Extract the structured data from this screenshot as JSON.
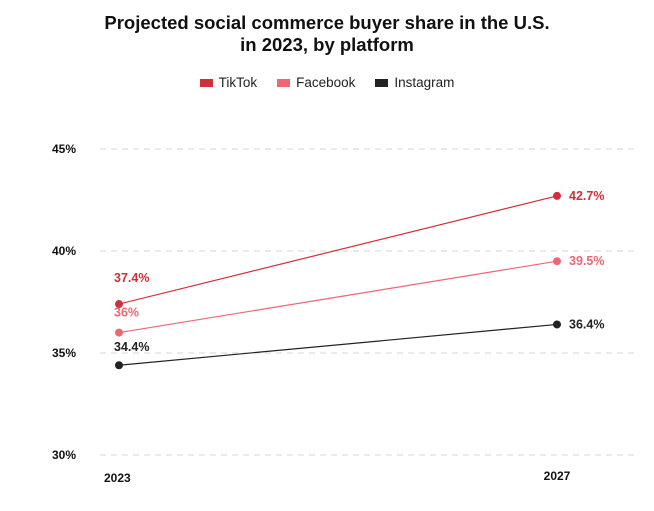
{
  "chart_data": {
    "type": "line",
    "title_line1": "Projected social commerce buyer share in the U.S.",
    "title_line2": "in 2023, by platform",
    "categories": [
      "2023",
      "2027"
    ],
    "ylim": [
      30,
      45
    ],
    "yticks": [
      "30%",
      "35%",
      "40%",
      "45%"
    ],
    "grid": true,
    "legend_position": "top-center",
    "series": [
      {
        "name": "TikTok",
        "color": "#d32f3a",
        "values": [
          37.4,
          42.7
        ],
        "labels": [
          "37.4%",
          "42.7%"
        ]
      },
      {
        "name": "Facebook",
        "color": "#ee6671",
        "values": [
          36,
          39.5
        ],
        "labels": [
          "36%",
          "39.5%"
        ]
      },
      {
        "name": "Instagram",
        "color": "#222222",
        "values": [
          34.4,
          36.4
        ],
        "labels": [
          "34.4%",
          "36.4%"
        ]
      }
    ]
  }
}
